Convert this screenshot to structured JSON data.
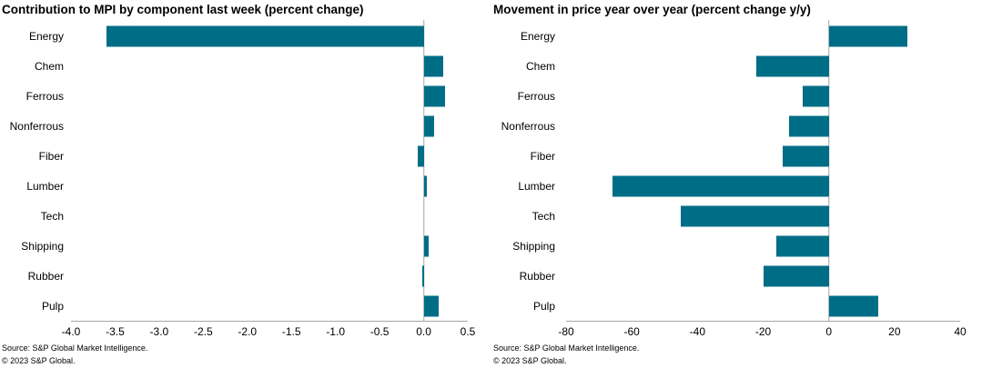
{
  "colors": {
    "bar": "#006d87",
    "axis_line": "#a6a6a6",
    "text": "#000000",
    "background": "#ffffff"
  },
  "chart_data": [
    {
      "type": "bar",
      "orientation": "horizontal",
      "title": "Contribution to MPI by component last week (percent change)",
      "categories": [
        "Energy",
        "Chem",
        "Ferrous",
        "Nonferrous",
        "Fiber",
        "Lumber",
        "Tech",
        "Shipping",
        "Rubber",
        "Pulp"
      ],
      "values": [
        -3.6,
        0.22,
        0.24,
        0.12,
        -0.07,
        0.04,
        0.0,
        0.06,
        -0.02,
        0.17
      ],
      "xlim": [
        -4.0,
        0.5
      ],
      "xticks": [
        -4.0,
        -3.5,
        -3.0,
        -2.5,
        -2.0,
        -1.5,
        -1.0,
        -0.5,
        0.0,
        0.5
      ],
      "xtick_labels": [
        "-4.0",
        "-3.5",
        "-3.0",
        "-2.5",
        "-2.0",
        "-1.5",
        "-1.0",
        "-0.5",
        "0.0",
        "0.5"
      ],
      "grid": false,
      "zero_gridline": true,
      "legend": "none",
      "source": "Source: S&P Global Market Intelligence.",
      "copyright": "© 2023 S&P Global."
    },
    {
      "type": "bar",
      "orientation": "horizontal",
      "title": "Movement in price year over year (percent change y/y)",
      "categories": [
        "Energy",
        "Chem",
        "Ferrous",
        "Nonferrous",
        "Fiber",
        "Lumber",
        "Tech",
        "Shipping",
        "Rubber",
        "Pulp"
      ],
      "values": [
        24,
        -22,
        -8,
        -12,
        -14,
        -66,
        -45,
        -16,
        -20,
        15
      ],
      "xlim": [
        -80,
        40
      ],
      "xticks": [
        -80,
        -60,
        -40,
        -20,
        0,
        20,
        40
      ],
      "xtick_labels": [
        "-80",
        "-60",
        "-40",
        "-20",
        "0",
        "20",
        "40"
      ],
      "grid": false,
      "zero_gridline": true,
      "legend": "none",
      "source": "Source: S&P Global Market Intelligence.",
      "copyright": "© 2023 S&P Global."
    }
  ]
}
